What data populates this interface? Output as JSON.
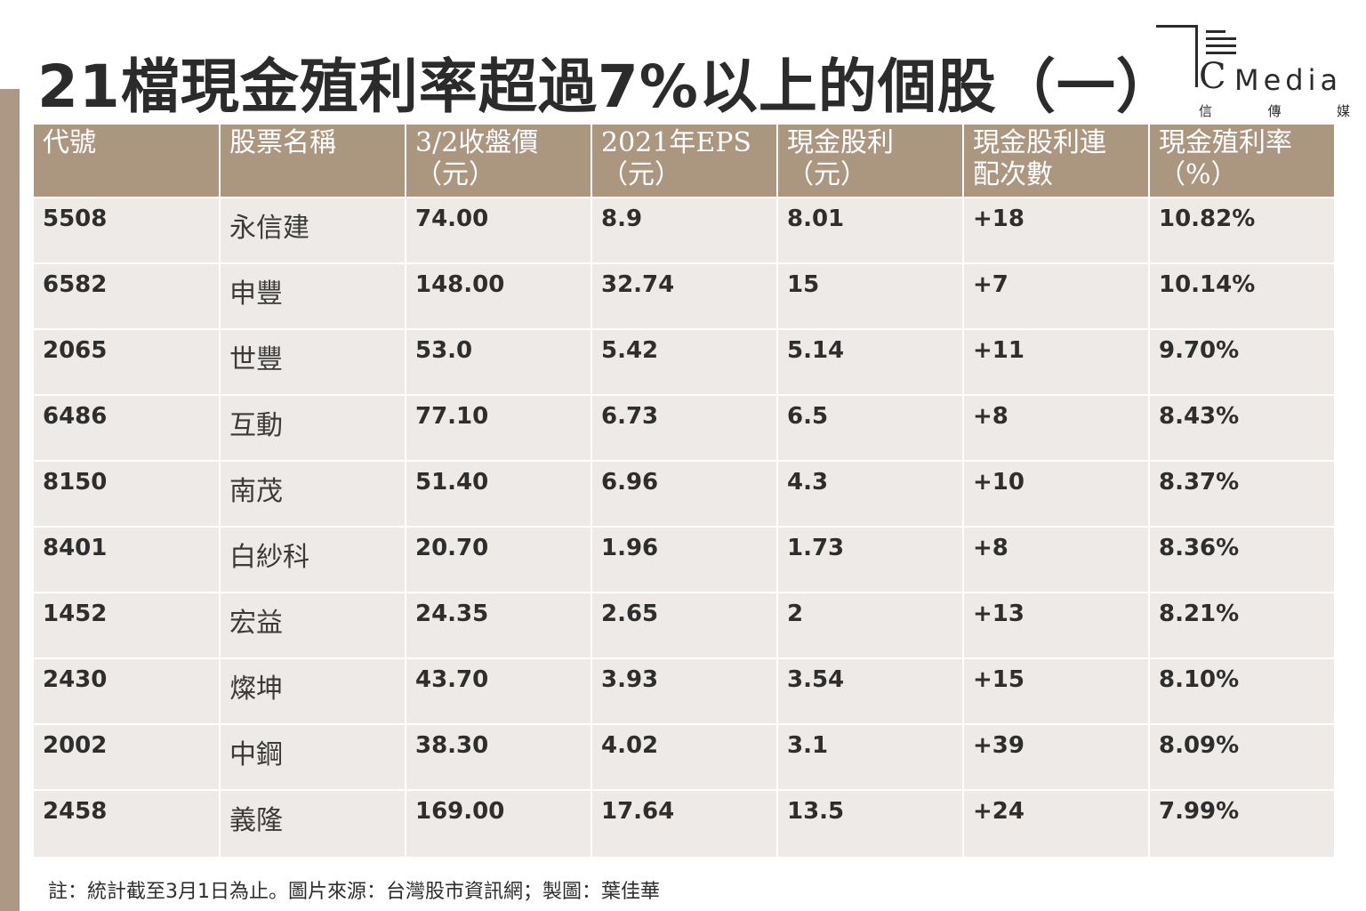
{
  "title": "21檔現金殖利率超過7%以上的個股（一）",
  "logo": {
    "c": "C",
    "word": "Media",
    "cn": [
      "信",
      "傳",
      "媒"
    ]
  },
  "table": {
    "headers": [
      {
        "l1": "代號",
        "l2": ""
      },
      {
        "l1": "股票名稱",
        "l2": ""
      },
      {
        "l1": "3/2收盤價",
        "l2": "（元）"
      },
      {
        "l1": "2021年EPS",
        "l2": "（元）"
      },
      {
        "l1": "現金股利",
        "l2": "（元）"
      },
      {
        "l1": "現金股利連",
        "l2": "配次數"
      },
      {
        "l1": "現金殖利率",
        "l2": "（%）"
      }
    ],
    "rows": [
      [
        "5508",
        "永信建",
        "74.00",
        "8.9",
        "8.01",
        "+18",
        "10.82%"
      ],
      [
        "6582",
        "申豐",
        "148.00",
        "32.74",
        "15",
        "+7",
        "10.14%"
      ],
      [
        "2065",
        "世豐",
        "53.0",
        "5.42",
        "5.14",
        "+11",
        "9.70%"
      ],
      [
        "6486",
        "互動",
        "77.10",
        "6.73",
        "6.5",
        "+8",
        "8.43%"
      ],
      [
        "8150",
        "南茂",
        "51.40",
        "6.96",
        "4.3",
        "+10",
        "8.37%"
      ],
      [
        "8401",
        "白紗科",
        "20.70",
        "1.96",
        "1.73",
        "+8",
        "8.36%"
      ],
      [
        "1452",
        "宏益",
        "24.35",
        "2.65",
        "2",
        "+13",
        "8.21%"
      ],
      [
        "2430",
        "燦坤",
        "43.70",
        "3.93",
        "3.54",
        "+15",
        "8.10%"
      ],
      [
        "2002",
        "中鋼",
        "38.30",
        "4.02",
        "3.1",
        "+39",
        "8.09%"
      ],
      [
        "2458",
        "義隆",
        "169.00",
        "17.64",
        "13.5",
        "+24",
        "7.99%"
      ]
    ]
  },
  "footnote": "註：統計截至3月1日為止。圖片來源：台灣股市資訊網；製圖：葉佳華",
  "colors": {
    "header_bg": "#ab9680",
    "cell_bg": "#edeae7",
    "accent_bar": "#ac9884",
    "text": "#2e2e2e"
  }
}
